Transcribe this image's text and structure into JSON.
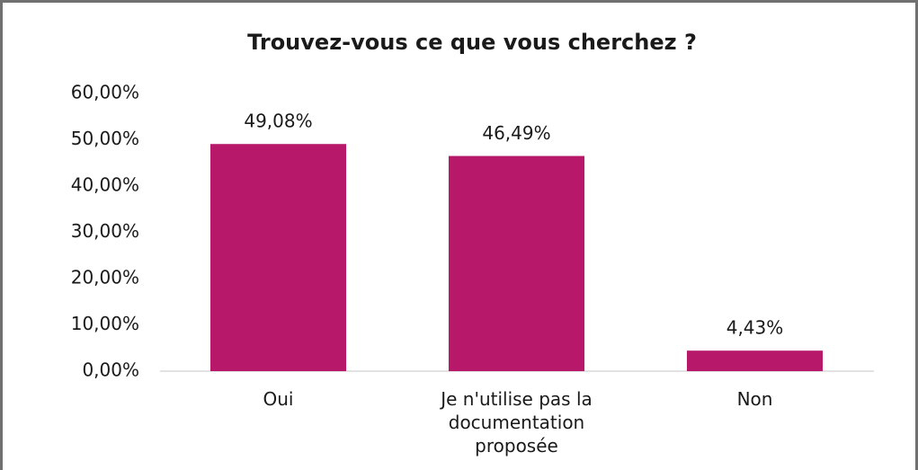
{
  "chart_data": {
    "type": "bar",
    "title": "Trouvez-vous ce que vous cherchez ?",
    "categories": [
      "Oui",
      "Je n'utilise pas la documentation proposée",
      "Non"
    ],
    "values": [
      49.08,
      46.49,
      4.43
    ],
    "value_labels": [
      "49,08%",
      "46,49%",
      "4,43%"
    ],
    "color": "#b8186a",
    "ylim": [
      0,
      60
    ],
    "yticks": [
      {
        "value": 0,
        "label": "0,00%"
      },
      {
        "value": 10,
        "label": "10,00%"
      },
      {
        "value": 20,
        "label": "20,00%"
      },
      {
        "value": 30,
        "label": "30,00%"
      },
      {
        "value": 40,
        "label": "40,00%"
      },
      {
        "value": 50,
        "label": "50,00%"
      },
      {
        "value": 60,
        "label": "60,00%"
      }
    ],
    "grid": false
  }
}
